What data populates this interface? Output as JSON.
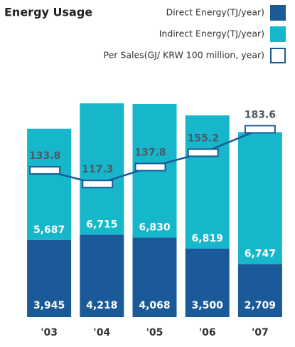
{
  "chart_data": {
    "type": "bar",
    "title": "Energy Usage",
    "categories": [
      "'03",
      "'04",
      "'05",
      "'06",
      "'07"
    ],
    "stacked": true,
    "series": [
      {
        "name": "Direct Energy(TJ/year)",
        "color": "#1b5a98",
        "values": [
          3945,
          4218,
          4068,
          3500,
          2709
        ],
        "value_labels": [
          "3,945",
          "4,218",
          "4,068",
          "3,500",
          "2,709"
        ]
      },
      {
        "name": "Indirect Energy(TJ/year)",
        "color": "#16b6cb",
        "values": [
          5687,
          6715,
          6830,
          6819,
          6747
        ],
        "value_labels": [
          "5,687",
          "6,715",
          "6,830",
          "6,819",
          "6,747"
        ]
      },
      {
        "name": "Per Sales(GJ/ KRW 100 million, year)",
        "type": "line",
        "axis": "y2",
        "color": "#1b5a98",
        "values": [
          133.8,
          117.3,
          137.8,
          155.2,
          183.6
        ]
      }
    ],
    "ylim": [
      0,
      11480
    ],
    "y2lim": [
      -44,
      228
    ]
  }
}
